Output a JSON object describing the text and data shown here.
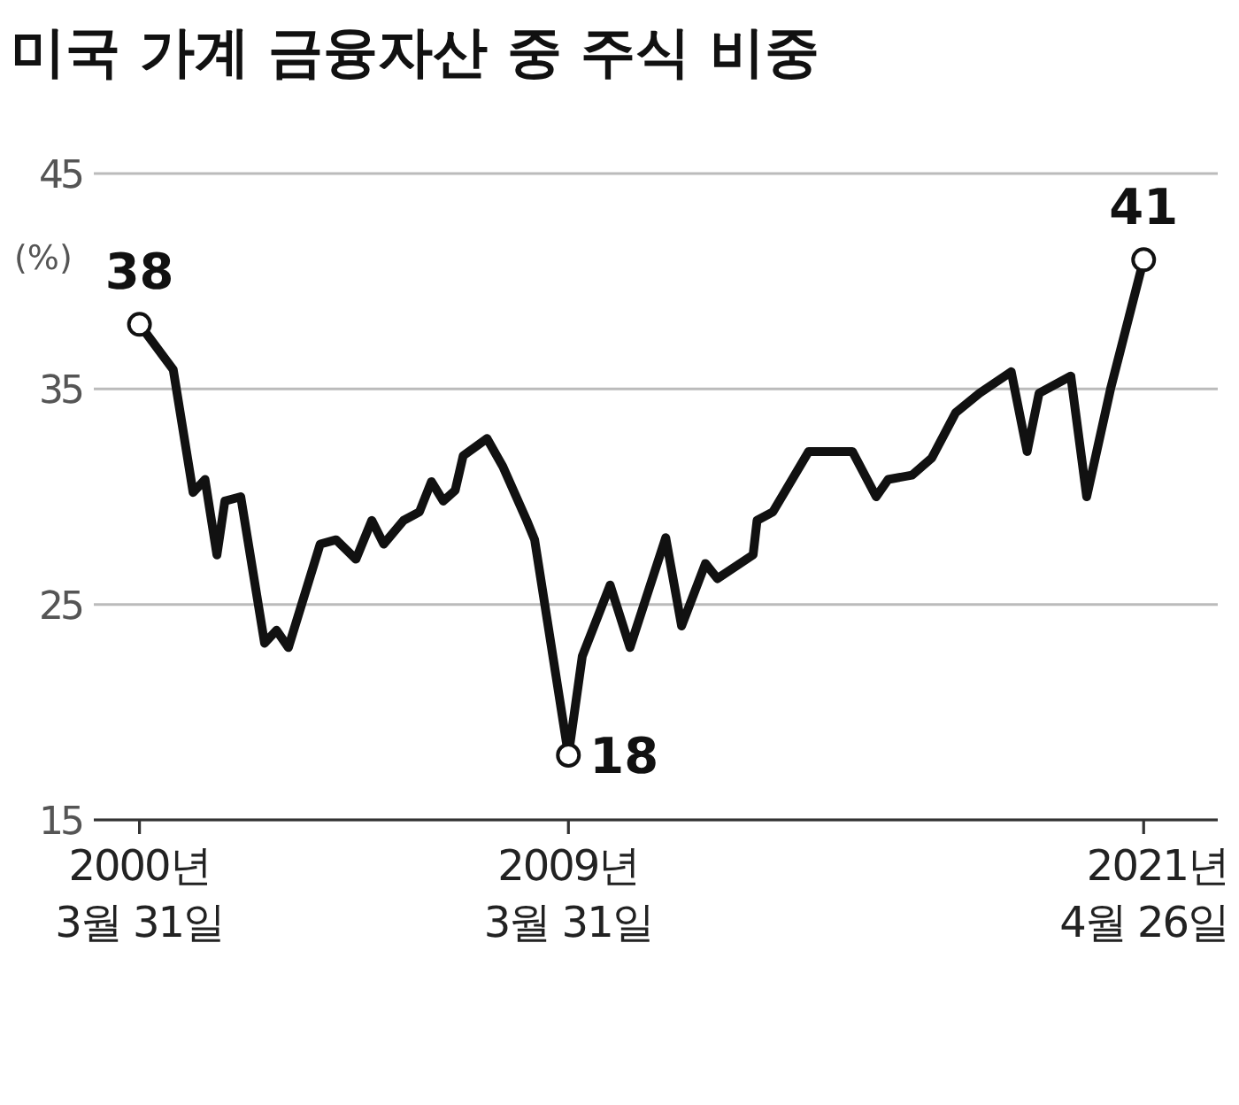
{
  "chart_data": {
    "type": "line",
    "title": "미국 가계 금융자산 중 주식 비중",
    "ylabel": "(%)",
    "x": [
      "2000-03-31",
      "2000-12",
      "2001-05",
      "2001-08",
      "2001-11",
      "2002-01",
      "2002-05",
      "2002-11",
      "2003-02",
      "2003-05",
      "2004-01",
      "2004-05",
      "2004-10",
      "2005-02",
      "2005-05",
      "2005-10",
      "2006-02",
      "2006-05",
      "2006-08",
      "2006-11",
      "2007-01",
      "2007-07",
      "2007-11",
      "2008-05",
      "2008-07",
      "2009-03-31",
      "2009-07",
      "2010-02",
      "2010-07",
      "2011-04",
      "2011-08",
      "2012-02",
      "2012-05",
      "2013-02",
      "2013-03",
      "2013-07",
      "2014-04",
      "2015-03",
      "2015-09",
      "2015-12",
      "2016-06",
      "2016-11",
      "2017-05",
      "2017-11",
      "2018-07",
      "2018-11",
      "2019-02",
      "2019-10",
      "2020-02",
      "2020-08",
      "2021-04-26"
    ],
    "series": [
      {
        "color": "#111111",
        "values": [
          38,
          35.9,
          30.2,
          30.8,
          27.3,
          29.8,
          30,
          23.2,
          23.8,
          23,
          27.8,
          28,
          27.1,
          28.9,
          27.8,
          28.9,
          29.3,
          30.7,
          29.8,
          30.3,
          31.9,
          32.7,
          31.4,
          28.9,
          28,
          18,
          22.6,
          25.9,
          23,
          28.1,
          24,
          26.9,
          26.2,
          27.3,
          28.9,
          29.3,
          32.1,
          32.1,
          30,
          30.8,
          31,
          31.8,
          33.9,
          34.8,
          35.8,
          32.1,
          34.8,
          35.6,
          30,
          35,
          41
        ],
        "value_labels": [
          "38",
          null,
          null,
          null,
          null,
          null,
          null,
          null,
          null,
          null,
          null,
          null,
          null,
          null,
          null,
          null,
          null,
          null,
          null,
          null,
          null,
          null,
          null,
          null,
          null,
          "18",
          null,
          null,
          null,
          null,
          null,
          null,
          null,
          null,
          null,
          null,
          null,
          null,
          null,
          null,
          null,
          null,
          null,
          null,
          null,
          null,
          null,
          null,
          null,
          null,
          "41"
        ]
      }
    ],
    "xlim": [
      "1999-04",
      "2022-11"
    ],
    "xticks": [
      {
        "value": "2000-03-31",
        "label": "2000년\n3월 31일"
      },
      {
        "value": "2009-03-31",
        "label": "2009년\n3월 31일"
      },
      {
        "value": "2021-04-26",
        "label": "2021년\n4월 26일"
      }
    ],
    "ylim": [
      15,
      45
    ],
    "yticks": [
      15,
      25,
      35,
      45
    ],
    "grid": "y"
  }
}
